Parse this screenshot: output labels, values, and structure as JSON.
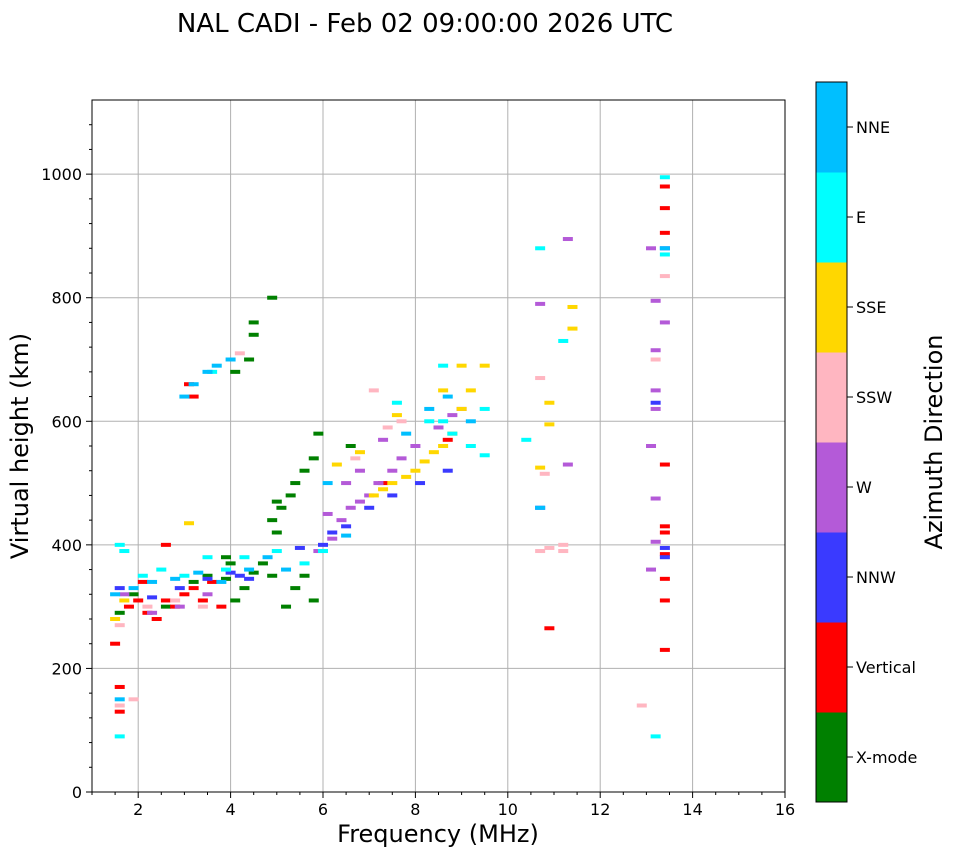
{
  "title": "NAL CADI - Feb 02 09:00:00 2026 UTC",
  "chart_data": {
    "type": "scatter",
    "title": "NAL CADI - Feb 02 09:00:00 2026 UTC",
    "xlabel": "Frequency (MHz)",
    "ylabel": "Virtual height (km)",
    "xlim": [
      1,
      16
    ],
    "ylim": [
      0,
      1120
    ],
    "grid": true,
    "x_major_ticks": [
      2,
      4,
      6,
      8,
      10,
      12,
      14,
      16
    ],
    "y_major_ticks": [
      0,
      200,
      400,
      600,
      800,
      1000
    ],
    "colorbar": {
      "label": "Azimuth Direction",
      "categories": [
        {
          "name": "X-mode",
          "color": "#008000"
        },
        {
          "name": "Vertical",
          "color": "#ff0000"
        },
        {
          "name": "NNW",
          "color": "#3a3aff"
        },
        {
          "name": "W",
          "color": "#b45ad8"
        },
        {
          "name": "SSW",
          "color": "#ffb6c1"
        },
        {
          "name": "SSE",
          "color": "#ffd700"
        },
        {
          "name": "E",
          "color": "#00ffff"
        },
        {
          "name": "NNE",
          "color": "#00bfff"
        }
      ]
    },
    "series": [
      {
        "name": "X-mode",
        "points": [
          [
            1.6,
            290
          ],
          [
            1.9,
            320
          ],
          [
            2.6,
            300
          ],
          [
            3.2,
            340
          ],
          [
            3.5,
            350
          ],
          [
            3.9,
            345
          ],
          [
            4.1,
            310
          ],
          [
            4.3,
            330
          ],
          [
            4.5,
            355
          ],
          [
            4.7,
            370
          ],
          [
            4.9,
            350
          ],
          [
            5.0,
            420
          ],
          [
            5.2,
            300
          ],
          [
            5.4,
            330
          ],
          [
            5.6,
            350
          ],
          [
            5.8,
            310
          ],
          [
            4.9,
            440
          ],
          [
            5.0,
            470
          ],
          [
            5.3,
            480
          ],
          [
            5.4,
            500
          ],
          [
            5.6,
            520
          ],
          [
            5.8,
            540
          ],
          [
            5.9,
            580
          ],
          [
            4.5,
            760
          ],
          [
            4.9,
            800
          ],
          [
            4.1,
            680
          ],
          [
            4.5,
            740
          ],
          [
            4.4,
            700
          ],
          [
            5.1,
            460
          ],
          [
            6.6,
            560
          ],
          [
            3.9,
            380
          ],
          [
            4.0,
            370
          ]
        ]
      },
      {
        "name": "Vertical",
        "points": [
          [
            1.5,
            240
          ],
          [
            1.6,
            170
          ],
          [
            1.6,
            130
          ],
          [
            1.8,
            300
          ],
          [
            2.0,
            310
          ],
          [
            2.2,
            290
          ],
          [
            2.4,
            280
          ],
          [
            2.6,
            310
          ],
          [
            2.8,
            300
          ],
          [
            3.0,
            320
          ],
          [
            3.2,
            330
          ],
          [
            3.4,
            310
          ],
          [
            3.6,
            340
          ],
          [
            3.8,
            300
          ],
          [
            2.1,
            340
          ],
          [
            2.6,
            400
          ],
          [
            3.1,
            660
          ],
          [
            3.2,
            640
          ],
          [
            8.7,
            570
          ],
          [
            10.9,
            265
          ],
          [
            13.4,
            230
          ],
          [
            13.4,
            310
          ],
          [
            13.4,
            345
          ],
          [
            13.4,
            385
          ],
          [
            13.4,
            420
          ],
          [
            13.4,
            430
          ],
          [
            13.4,
            530
          ],
          [
            13.4,
            905
          ],
          [
            13.4,
            945
          ],
          [
            13.4,
            980
          ],
          [
            7.3,
            500
          ]
        ]
      },
      {
        "name": "NNW",
        "points": [
          [
            1.6,
            330
          ],
          [
            2.3,
            315
          ],
          [
            2.9,
            330
          ],
          [
            3.5,
            345
          ],
          [
            4.0,
            355
          ],
          [
            4.4,
            345
          ],
          [
            5.5,
            395
          ],
          [
            6.2,
            420
          ],
          [
            6.5,
            430
          ],
          [
            7.0,
            460
          ],
          [
            7.5,
            480
          ],
          [
            8.1,
            500
          ],
          [
            8.7,
            520
          ],
          [
            10.7,
            460
          ],
          [
            13.2,
            630
          ],
          [
            13.4,
            380
          ],
          [
            13.4,
            395
          ],
          [
            13.4,
            880
          ],
          [
            6.0,
            400
          ],
          [
            4.2,
            350
          ]
        ]
      },
      {
        "name": "W",
        "points": [
          [
            1.7,
            320
          ],
          [
            2.3,
            290
          ],
          [
            2.9,
            300
          ],
          [
            3.5,
            320
          ],
          [
            5.9,
            390
          ],
          [
            6.2,
            410
          ],
          [
            6.4,
            440
          ],
          [
            6.6,
            460
          ],
          [
            6.8,
            470
          ],
          [
            7.0,
            480
          ],
          [
            7.2,
            500
          ],
          [
            7.5,
            520
          ],
          [
            7.7,
            540
          ],
          [
            8.0,
            560
          ],
          [
            6.5,
            500
          ],
          [
            6.8,
            520
          ],
          [
            7.3,
            570
          ],
          [
            8.5,
            590
          ],
          [
            8.8,
            610
          ],
          [
            9.0,
            620
          ],
          [
            10.7,
            790
          ],
          [
            11.3,
            530
          ],
          [
            11.3,
            895
          ],
          [
            13.1,
            560
          ],
          [
            13.2,
            475
          ],
          [
            13.2,
            405
          ],
          [
            13.1,
            360
          ],
          [
            13.4,
            760
          ],
          [
            13.1,
            880
          ],
          [
            13.2,
            795
          ],
          [
            13.2,
            715
          ],
          [
            13.2,
            650
          ],
          [
            13.2,
            620
          ],
          [
            6.1,
            450
          ]
        ]
      },
      {
        "name": "SSW",
        "points": [
          [
            1.6,
            140
          ],
          [
            1.9,
            150
          ],
          [
            1.6,
            270
          ],
          [
            2.2,
            300
          ],
          [
            2.8,
            310
          ],
          [
            3.4,
            300
          ],
          [
            4.2,
            710
          ],
          [
            10.7,
            390
          ],
          [
            10.9,
            395
          ],
          [
            11.2,
            390
          ],
          [
            11.2,
            400
          ],
          [
            12.9,
            140
          ],
          [
            13.2,
            700
          ],
          [
            10.7,
            670
          ],
          [
            10.8,
            515
          ],
          [
            6.7,
            540
          ],
          [
            7.4,
            590
          ],
          [
            7.1,
            650
          ],
          [
            7.7,
            600
          ],
          [
            13.4,
            835
          ]
        ]
      },
      {
        "name": "SSE",
        "points": [
          [
            1.5,
            280
          ],
          [
            1.7,
            310
          ],
          [
            3.1,
            435
          ],
          [
            6.3,
            530
          ],
          [
            6.8,
            550
          ],
          [
            7.1,
            480
          ],
          [
            7.3,
            490
          ],
          [
            7.5,
            500
          ],
          [
            7.8,
            510
          ],
          [
            8.0,
            520
          ],
          [
            8.2,
            535
          ],
          [
            8.4,
            550
          ],
          [
            8.6,
            560
          ],
          [
            8.8,
            580
          ],
          [
            9.0,
            620
          ],
          [
            8.6,
            650
          ],
          [
            9.0,
            690
          ],
          [
            9.5,
            690
          ],
          [
            9.2,
            650
          ],
          [
            10.7,
            525
          ],
          [
            10.9,
            595
          ],
          [
            10.9,
            630
          ],
          [
            11.4,
            785
          ],
          [
            11.4,
            750
          ],
          [
            7.6,
            610
          ]
        ]
      },
      {
        "name": "E",
        "points": [
          [
            1.6,
            90
          ],
          [
            1.6,
            400
          ],
          [
            1.7,
            390
          ],
          [
            2.1,
            350
          ],
          [
            2.5,
            360
          ],
          [
            3.0,
            350
          ],
          [
            3.5,
            380
          ],
          [
            3.9,
            360
          ],
          [
            4.3,
            380
          ],
          [
            5.0,
            390
          ],
          [
            5.6,
            370
          ],
          [
            6.0,
            390
          ],
          [
            7.6,
            630
          ],
          [
            8.3,
            600
          ],
          [
            8.6,
            600
          ],
          [
            8.8,
            580
          ],
          [
            9.2,
            560
          ],
          [
            9.5,
            545
          ],
          [
            9.5,
            620
          ],
          [
            10.4,
            570
          ],
          [
            10.7,
            880
          ],
          [
            11.2,
            730
          ],
          [
            13.2,
            90
          ],
          [
            13.4,
            995
          ],
          [
            13.4,
            870
          ],
          [
            8.6,
            690
          ],
          [
            3.6,
            680
          ]
        ]
      },
      {
        "name": "NNE",
        "points": [
          [
            1.6,
            150
          ],
          [
            1.5,
            320
          ],
          [
            1.9,
            330
          ],
          [
            2.3,
            340
          ],
          [
            2.8,
            345
          ],
          [
            3.3,
            355
          ],
          [
            3.8,
            340
          ],
          [
            4.4,
            360
          ],
          [
            4.8,
            380
          ],
          [
            5.2,
            360
          ],
          [
            3.0,
            640
          ],
          [
            3.2,
            660
          ],
          [
            3.5,
            680
          ],
          [
            3.7,
            690
          ],
          [
            4.0,
            700
          ],
          [
            6.5,
            415
          ],
          [
            7.8,
            580
          ],
          [
            8.3,
            620
          ],
          [
            8.7,
            640
          ],
          [
            9.2,
            600
          ],
          [
            10.7,
            460
          ],
          [
            13.4,
            880
          ],
          [
            6.1,
            500
          ]
        ]
      }
    ]
  }
}
